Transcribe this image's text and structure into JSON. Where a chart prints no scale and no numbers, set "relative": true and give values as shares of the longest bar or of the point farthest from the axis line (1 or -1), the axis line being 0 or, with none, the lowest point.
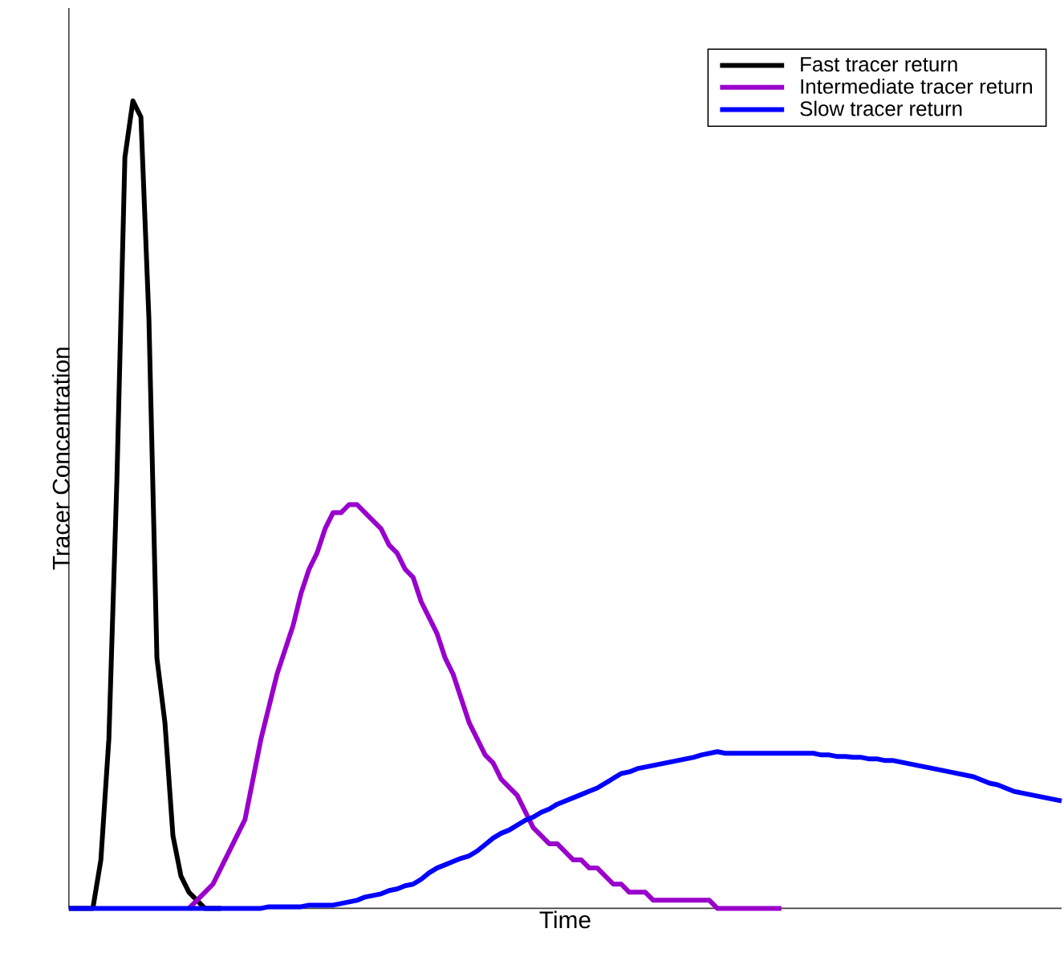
{
  "chart_data": {
    "type": "line",
    "relative": true,
    "xlabel": "Time",
    "ylabel": "Tracer Concentration",
    "legend": "top right",
    "marker": "none",
    "line_style": "solid",
    "categories": [
      null,
      null,
      null,
      null,
      null,
      null,
      null,
      null,
      null,
      null,
      null,
      null,
      null,
      null,
      null,
      null,
      null,
      null,
      null,
      null,
      null,
      null,
      null,
      null,
      null,
      null,
      null,
      null,
      null,
      null,
      null,
      null,
      null,
      null,
      null,
      null,
      null,
      null,
      null,
      null,
      null,
      null,
      null,
      null,
      null,
      null,
      null,
      null,
      null,
      null,
      null,
      null,
      null,
      null,
      null,
      null,
      null,
      null,
      null,
      null,
      null,
      null,
      null,
      null,
      null,
      null,
      null,
      null,
      null,
      null,
      null,
      null,
      null,
      null,
      null,
      null,
      null,
      null,
      null,
      null,
      null,
      null,
      null,
      null,
      null,
      null,
      null,
      null,
      null,
      null,
      null,
      null,
      null,
      null,
      null,
      null,
      null,
      null,
      null,
      null,
      null,
      null,
      null,
      null,
      null,
      null,
      null,
      null,
      null,
      null,
      null,
      null,
      null,
      null,
      null,
      null,
      null,
      null,
      null,
      null,
      null,
      null,
      null,
      null,
      null
    ],
    "series": [
      {
        "name": "Fast tracer return",
        "color": "#000000",
        "values": [
          0,
          0,
          0,
          0,
          0.06,
          0.21,
          0.53,
          0.93,
          1.0,
          0.98,
          0.73,
          0.31,
          0.23,
          0.09,
          0.04,
          0.02,
          0.01,
          0,
          0,
          0,
          null,
          null,
          null,
          null,
          null,
          null,
          null,
          null,
          null,
          null,
          null,
          null,
          null,
          null,
          null,
          null,
          null,
          null,
          null,
          null,
          null,
          null,
          null,
          null,
          null,
          null,
          null,
          null,
          null,
          null,
          null,
          null,
          null,
          null,
          null,
          null,
          null,
          null,
          null,
          null,
          null,
          null,
          null,
          null,
          null,
          null,
          null,
          null,
          null,
          null,
          null,
          null,
          null,
          null,
          null,
          null,
          null,
          null,
          null,
          null,
          null,
          null,
          null,
          null,
          null,
          null,
          null,
          null,
          null,
          null,
          null,
          null,
          null,
          null,
          null,
          null,
          null,
          null,
          null,
          null,
          null,
          null,
          null,
          null,
          null,
          null,
          null,
          null,
          null,
          null,
          null,
          null,
          null,
          null,
          null,
          null,
          null,
          null,
          null,
          null,
          null,
          null,
          null,
          null,
          null
        ]
      },
      {
        "name": "Intermediate  tracer return",
        "color": "#9900cc",
        "values": [
          null,
          null,
          null,
          null,
          null,
          null,
          null,
          null,
          null,
          null,
          null,
          null,
          null,
          null,
          null,
          0,
          0.01,
          0.02,
          0.03,
          0.05,
          0.07,
          0.09,
          0.11,
          0.16,
          0.21,
          0.25,
          0.29,
          0.32,
          0.35,
          0.39,
          0.42,
          0.44,
          0.47,
          0.49,
          0.49,
          0.5,
          0.5,
          0.49,
          0.48,
          0.47,
          0.45,
          0.44,
          0.42,
          0.41,
          0.38,
          0.36,
          0.34,
          0.31,
          0.29,
          0.26,
          0.23,
          0.21,
          0.19,
          0.18,
          0.16,
          0.15,
          0.14,
          0.12,
          0.1,
          0.09,
          0.08,
          0.08,
          0.07,
          0.06,
          0.06,
          0.05,
          0.05,
          0.04,
          0.03,
          0.03,
          0.02,
          0.02,
          0.02,
          0.01,
          0.01,
          0.01,
          0.01,
          0.01,
          0.01,
          0.01,
          0.01,
          0,
          0,
          0,
          0,
          0,
          0,
          0,
          0,
          0,
          null,
          null,
          null,
          null,
          null,
          null,
          null,
          null,
          null,
          null,
          null,
          null,
          null,
          null,
          null,
          null,
          null,
          null,
          null,
          null,
          null,
          null,
          null,
          null,
          null,
          null,
          null,
          null,
          null,
          null,
          null,
          null,
          null,
          null,
          null
        ]
      },
      {
        "name": "Slow tracer return",
        "color": "#0000ff",
        "values": [
          0,
          0,
          0,
          0,
          0,
          0,
          0,
          0,
          0,
          0,
          0,
          0,
          0,
          0,
          0,
          0,
          0,
          0,
          0,
          0,
          0,
          0,
          0,
          0,
          0,
          0.002,
          0.002,
          0.002,
          0.002,
          0.002,
          0.004,
          0.004,
          0.004,
          0.004,
          0.006,
          0.008,
          0.01,
          0.014,
          0.016,
          0.018,
          0.022,
          0.024,
          0.028,
          0.03,
          0.036,
          0.044,
          0.05,
          0.054,
          0.058,
          0.062,
          0.065,
          0.071,
          0.079,
          0.087,
          0.093,
          0.097,
          0.103,
          0.109,
          0.113,
          0.119,
          0.123,
          0.129,
          0.133,
          0.137,
          0.141,
          0.145,
          0.149,
          0.155,
          0.161,
          0.167,
          0.169,
          0.173,
          0.175,
          0.177,
          0.179,
          0.181,
          0.183,
          0.185,
          0.187,
          0.19,
          0.192,
          0.194,
          0.192,
          0.192,
          0.192,
          0.192,
          0.192,
          0.192,
          0.192,
          0.192,
          0.192,
          0.192,
          0.192,
          0.192,
          0.19,
          0.19,
          0.188,
          0.188,
          0.187,
          0.187,
          0.185,
          0.185,
          0.183,
          0.183,
          0.181,
          0.179,
          0.177,
          0.175,
          0.173,
          0.171,
          0.169,
          0.167,
          0.165,
          0.163,
          0.159,
          0.155,
          0.153,
          0.149,
          0.145,
          0.143,
          0.141,
          0.139,
          0.137,
          0.135,
          0.133
        ]
      }
    ]
  }
}
